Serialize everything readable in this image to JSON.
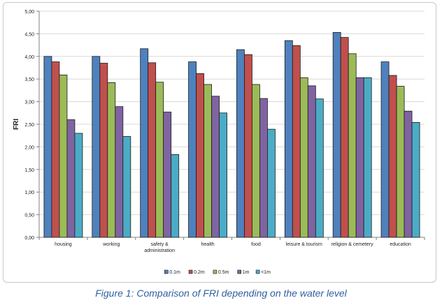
{
  "chart_data": {
    "type": "bar",
    "title": "",
    "xlabel": "",
    "ylabel": "FRI",
    "ylim": [
      0,
      5
    ],
    "yticks": [
      "0,00",
      "0,50",
      "1,00",
      "1,50",
      "2,00",
      "2,50",
      "3,00",
      "3,50",
      "4,00",
      "4,50",
      "5,00"
    ],
    "grid": true,
    "legend_position": "bottom",
    "categories": [
      "housing",
      "working",
      "safety & administration",
      "health",
      "food",
      "leisure & tourism",
      "religion & cemetery",
      "education"
    ],
    "category_lines": [
      [
        "housing"
      ],
      [
        "working"
      ],
      [
        "safety &",
        "administration"
      ],
      [
        "health"
      ],
      [
        "food"
      ],
      [
        "leisure & tourism"
      ],
      [
        "religion & cemetery"
      ],
      [
        "education"
      ]
    ],
    "series": [
      {
        "name": "0.1m",
        "color": "#4f81bd",
        "values": [
          4.0,
          4.0,
          4.17,
          3.88,
          4.15,
          4.35,
          4.53,
          3.88
        ]
      },
      {
        "name": "0.2m",
        "color": "#c0504d",
        "values": [
          3.88,
          3.85,
          3.86,
          3.62,
          4.04,
          4.24,
          4.42,
          3.58
        ]
      },
      {
        "name": "0.5m",
        "color": "#9bbb59",
        "values": [
          3.59,
          3.42,
          3.43,
          3.38,
          3.38,
          3.53,
          4.06,
          3.34
        ]
      },
      {
        "name": "1m",
        "color": "#8064a2",
        "values": [
          2.6,
          2.89,
          2.77,
          3.12,
          3.07,
          3.35,
          3.53,
          2.79
        ]
      },
      {
        "name": "<1m",
        "color": "#4bacc6",
        "values": [
          2.3,
          2.23,
          1.83,
          2.75,
          2.39,
          3.06,
          3.53,
          2.54
        ]
      }
    ]
  },
  "caption": "Figure 1: Comparison of FRI depending on the water level"
}
